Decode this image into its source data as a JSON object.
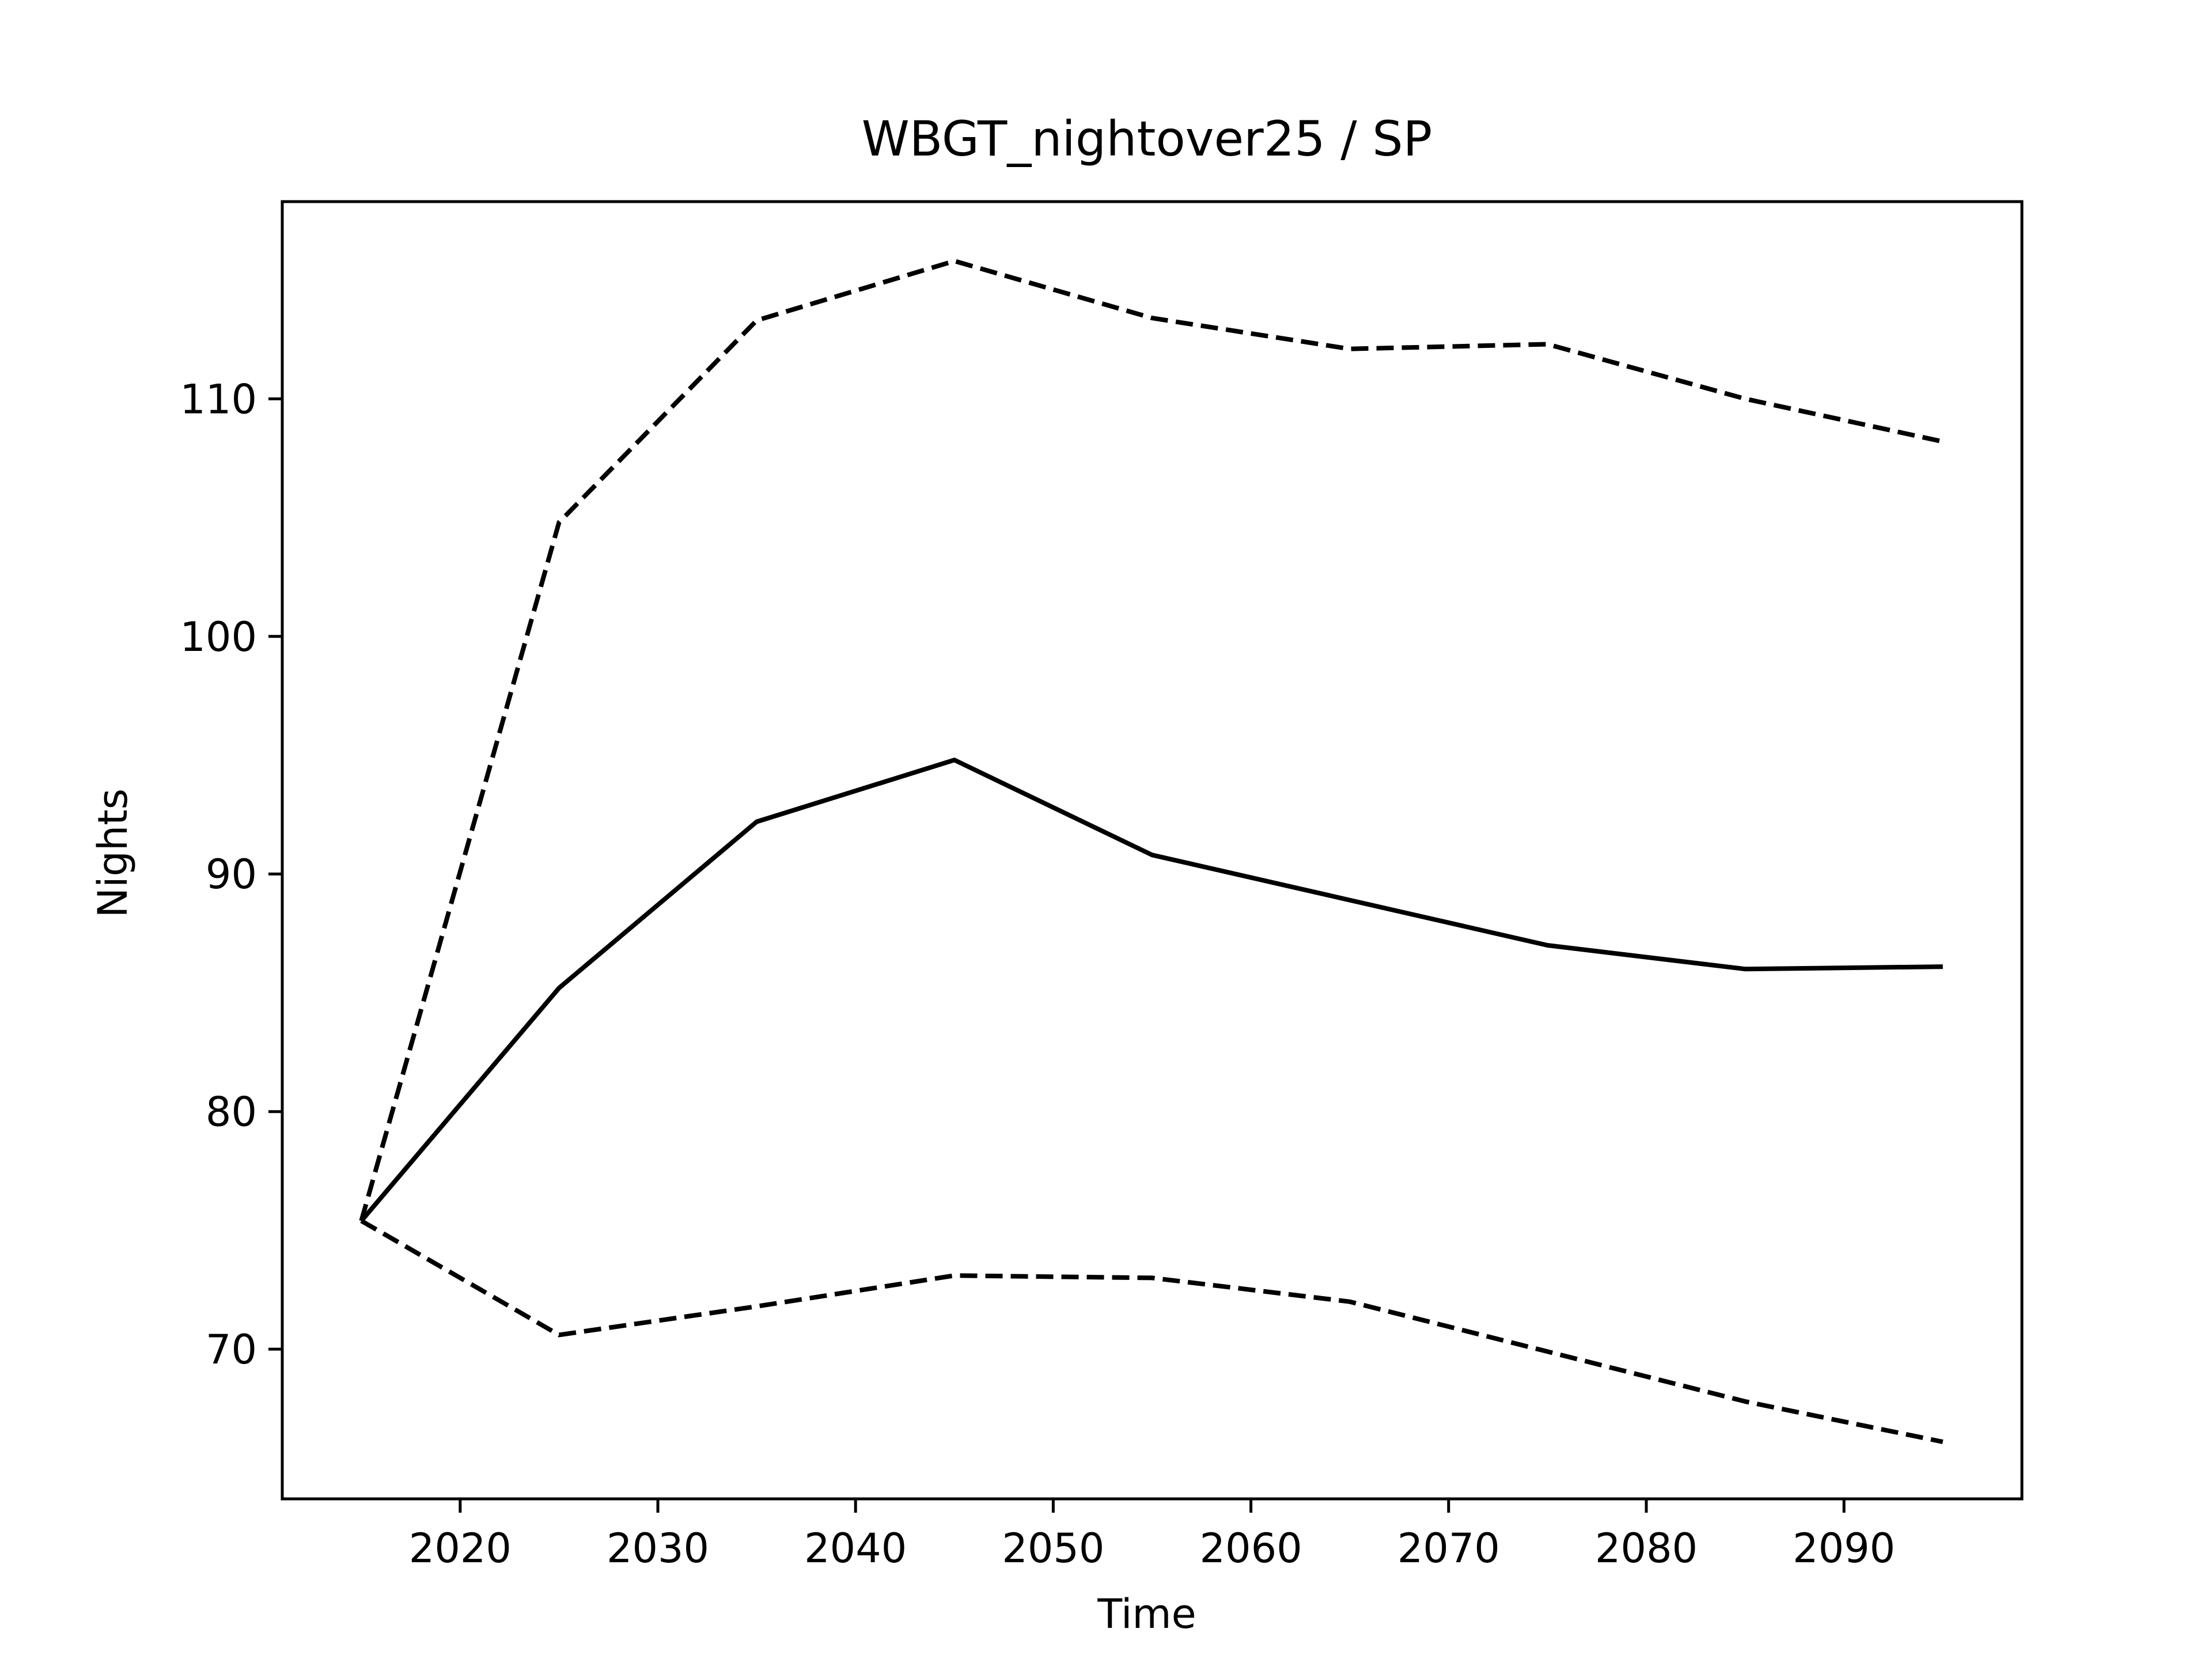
{
  "chart_data": {
    "type": "line",
    "title": "WBGT_nightover25 / SP",
    "xlabel": "Time",
    "ylabel": "Nights",
    "x": [
      2015,
      2025,
      2035,
      2045,
      2055,
      2065,
      2075,
      2085,
      2095
    ],
    "series": [
      {
        "style": "solid",
        "color": "#000000",
        "values": [
          75.4,
          85.2,
          92.2,
          94.8,
          90.8,
          88.9,
          87.0,
          86.0,
          86.1
        ]
      },
      {
        "style": "dashed",
        "color": "#000000",
        "values": [
          75.4,
          104.8,
          113.3,
          115.8,
          113.4,
          112.1,
          112.3,
          110.0,
          108.2
        ]
      },
      {
        "style": "dashed",
        "color": "#000000",
        "values": [
          75.4,
          70.6,
          71.8,
          73.1,
          73.0,
          72.0,
          69.9,
          67.8,
          66.1
        ]
      }
    ],
    "xlim": [
      2011,
      2099
    ],
    "ylim": [
      63.7,
      118.3
    ],
    "xticks": [
      2020,
      2030,
      2040,
      2050,
      2060,
      2070,
      2080,
      2090
    ],
    "yticks": [
      70,
      80,
      90,
      100,
      110
    ],
    "grid": false,
    "legend": "none"
  }
}
